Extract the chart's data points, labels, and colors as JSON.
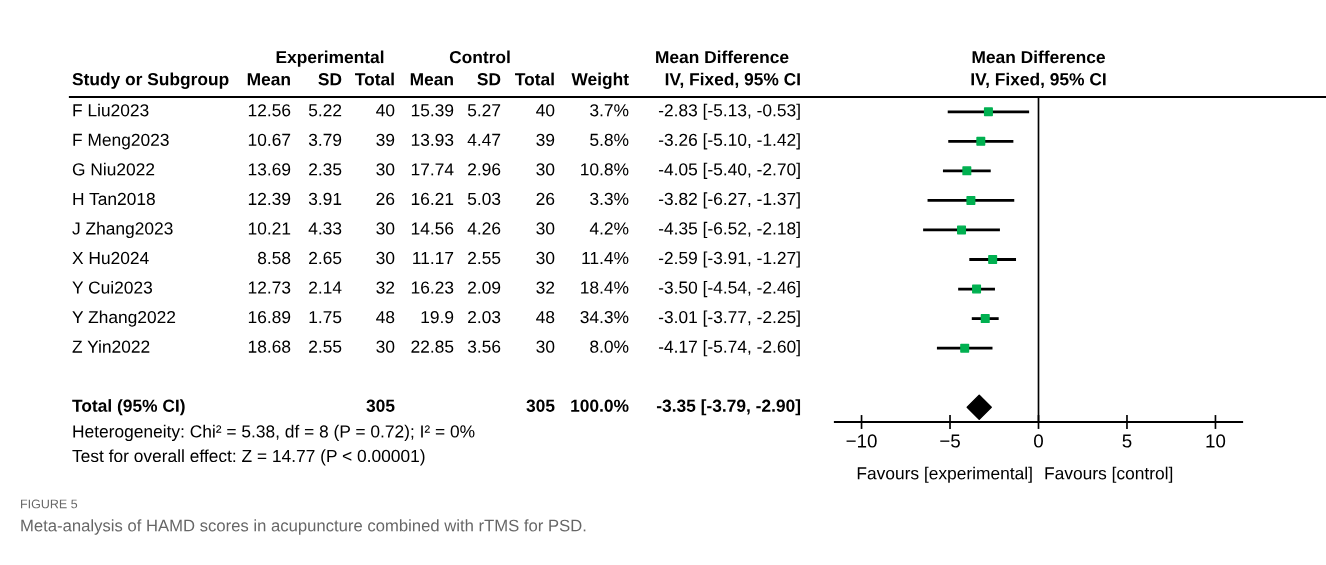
{
  "chart_data": [
    {
      "type": "other",
      "categories": [
        "Study or Subgroup",
        "Mean",
        "SD",
        "Total",
        "Mean",
        "SD",
        "Total",
        "Weight",
        "IV, Fixed, 95% CI"
      ],
      "y_categories": [
        "F Liu2023",
        "F Meng2023",
        "G Niu2022",
        "H Tan2018",
        "J Zhang2023",
        "X Hu2024",
        "Y Cui2023",
        "Y Zhang2022",
        "Z Yin2022",
        null,
        "Total (95% CI)"
      ],
      "cell_labels": [
        [
          "12.56",
          "5.22",
          "40",
          "15.39",
          "5.27",
          "40",
          "3.7%",
          "-2.83 [-5.13, -0.53]"
        ],
        [
          "10.67",
          "3.79",
          "39",
          "13.93",
          "4.47",
          "39",
          "5.8%",
          "-3.26 [-5.10, -1.42]"
        ],
        [
          "13.69",
          "2.35",
          "30",
          "17.74",
          "2.96",
          "30",
          "10.8%",
          "-4.05 [-5.40, -2.70]"
        ],
        [
          "12.39",
          "3.91",
          "26",
          "16.21",
          "5.03",
          "26",
          "3.3%",
          "-3.82 [-6.27, -1.37]"
        ],
        [
          "10.21",
          "4.33",
          "30",
          "14.56",
          "4.26",
          "30",
          "4.2%",
          "-4.35 [-6.52, -2.18]"
        ],
        [
          "8.58",
          "2.65",
          "30",
          "11.17",
          "2.55",
          "30",
          "11.4%",
          "-2.59 [-3.91, -1.27]"
        ],
        [
          "12.73",
          "2.14",
          "32",
          "16.23",
          "2.09",
          "32",
          "18.4%",
          "-3.50 [-4.54, -2.46]"
        ],
        [
          "16.89",
          "1.75",
          "48",
          "19.9",
          "2.03",
          "48",
          "34.3%",
          "-3.01 [-3.77, -2.25]"
        ],
        [
          "18.68",
          "2.55",
          "30",
          "22.85",
          "3.56",
          "30",
          "8.0%",
          "-4.17 [-5.74, -2.60]"
        ],
        [
          null,
          null,
          null,
          null,
          null,
          null,
          null,
          null
        ],
        [
          null,
          null,
          "305",
          null,
          null,
          "305",
          "100.0%",
          "-3.35 [-3.79, -2.90]"
        ]
      ],
      "annotations": [
        "Experimental",
        "Control",
        "Mean Difference",
        "Heterogeneity: Chi² = 5.38, df = 8 (P = 0.72); I² = 0%",
        "Test for overall effect: Z = 14.77 (P < 0.00001)",
        "FIGURE 5",
        "Meta-analysis of HAMD scores in acupuncture combined with rTMS for PSD."
      ]
    },
    {
      "type": "scatter",
      "orientation": "horizontal",
      "title": "Mean Difference",
      "subtitle": "IV, Fixed, 95% CI",
      "categories": [
        null,
        null,
        null,
        null,
        null,
        null,
        null,
        null,
        null,
        null,
        null
      ],
      "series": [
        {
          "color": "#00b050",
          "marker": "square",
          "values": [
            -2.83,
            -3.26,
            -4.05,
            -3.82,
            -4.35,
            -2.59,
            -3.5,
            -3.01,
            -4.17,
            null,
            null
          ],
          "errors": [
            [
              -5.13,
              -0.53
            ],
            [
              -5.1,
              -1.42
            ],
            [
              -5.4,
              -2.7
            ],
            [
              -6.27,
              -1.37
            ],
            [
              -6.52,
              -2.18
            ],
            [
              -3.91,
              -1.27
            ],
            [
              -4.54,
              -2.46
            ],
            [
              -3.77,
              -2.25
            ],
            [
              -5.74,
              -2.6
            ],
            null,
            null
          ]
        },
        {
          "color": "#000000",
          "marker": "diamond",
          "values": [
            null,
            null,
            null,
            null,
            null,
            null,
            null,
            null,
            null,
            null,
            -3.35
          ]
        }
      ],
      "xlim": [
        -11.5,
        11.5
      ],
      "xticks": [
        -10,
        -5,
        0,
        5,
        10
      ],
      "tick_labels": "x",
      "ref_lines": [
        {
          "axis": "x",
          "value": 0,
          "color": "#000000"
        }
      ],
      "annotations": [
        "Favours [experimental]",
        "Favours [control]"
      ]
    }
  ]
}
